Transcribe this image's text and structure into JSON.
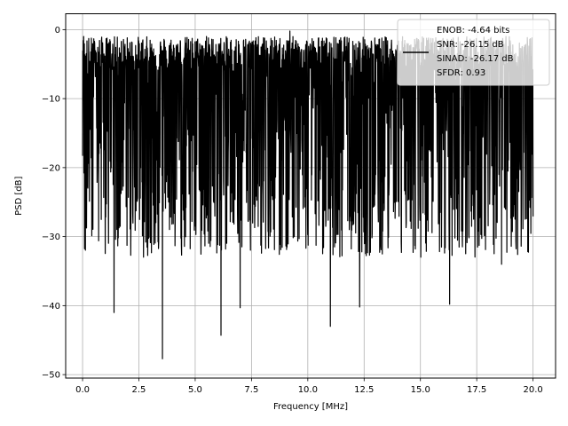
{
  "chart_data": {
    "type": "line",
    "title": "",
    "xlabel": "Frequency [MHz]",
    "ylabel": "PSD [dB]",
    "xlim": [
      -0.75,
      21.0
    ],
    "ylim": [
      -50.5,
      2.3
    ],
    "xticks": [
      0.0,
      2.5,
      5.0,
      7.5,
      10.0,
      12.5,
      15.0,
      17.5,
      20.0
    ],
    "xtick_labels": [
      "0.0",
      "2.5",
      "5.0",
      "7.5",
      "10.0",
      "12.5",
      "15.0",
      "17.5",
      "20.0"
    ],
    "yticks": [
      0,
      -10,
      -20,
      -30,
      -40,
      -50
    ],
    "ytick_labels": [
      "0",
      "−10",
      "−20",
      "−30",
      "−40",
      "−50"
    ],
    "grid": true,
    "legend_position": "top-right",
    "legend_lines": [
      "ENOB: -4.64 bits",
      "SNR: -26.15 dB",
      "SINAD: -26.17 dB",
      "SFDR: 0.93"
    ],
    "series": [
      {
        "color": "#000000",
        "x_range": [
          0.0,
          20.0
        ],
        "points": 2048,
        "band_upper": -3,
        "band_lower": -25,
        "peak_points": [
          [
            0.05,
            -1.0
          ],
          [
            1.6,
            -4.0
          ],
          [
            4.2,
            -2.5
          ],
          [
            5.5,
            -1.0
          ],
          [
            9.2,
            -0.2
          ],
          [
            13.1,
            -2.2
          ],
          [
            14.8,
            -3.0
          ],
          [
            18.8,
            -1.0
          ]
        ],
        "dip_points": [
          [
            1.4,
            -41.0
          ],
          [
            3.55,
            -47.7
          ],
          [
            6.15,
            -44.3
          ],
          [
            7.0,
            -40.3
          ],
          [
            11.0,
            -43.0
          ],
          [
            12.3,
            -40.2
          ],
          [
            16.3,
            -39.8
          ],
          [
            18.6,
            -34.0
          ]
        ]
      }
    ]
  }
}
